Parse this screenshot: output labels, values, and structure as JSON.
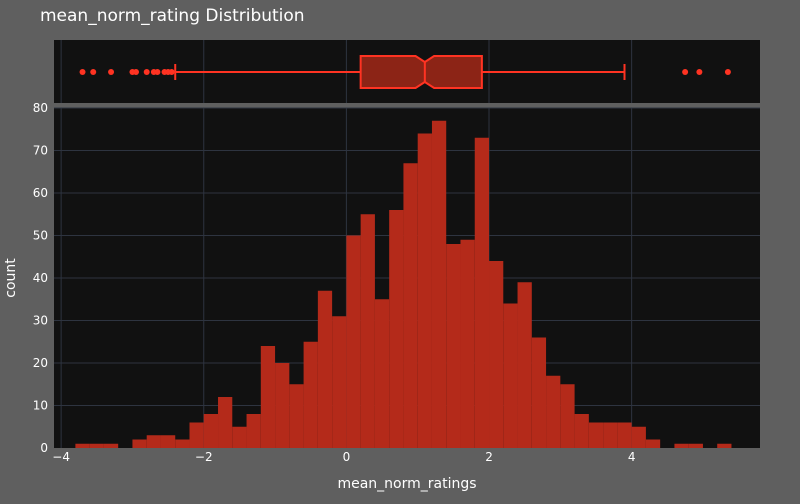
{
  "chart_data": {
    "type": "histogram",
    "title": "mean_norm_rating Distribution",
    "xlabel": "mean_norm_ratings",
    "ylabel": "count",
    "xlim": [
      -4.1,
      5.8
    ],
    "ylim": [
      0,
      80
    ],
    "x_ticks": [
      -4,
      -2,
      0,
      2,
      4
    ],
    "x_tick_labels": [
      "−4",
      "−2",
      "0",
      "2",
      "4"
    ],
    "y_ticks": [
      0,
      10,
      20,
      30,
      40,
      50,
      60,
      70,
      80
    ],
    "grid": true,
    "colors": {
      "bar_fill": "#b42a1a",
      "box_fill": "#8c2416",
      "box_stroke": "#ff3322",
      "plot_bg": "#111111",
      "paper_bg": "#5f5f5f",
      "grid": "#2e3440"
    },
    "bin_width": 0.2,
    "bins": [
      {
        "x0": -3.8,
        "count": 1
      },
      {
        "x0": -3.6,
        "count": 1
      },
      {
        "x0": -3.4,
        "count": 1
      },
      {
        "x0": -3.2,
        "count": 0
      },
      {
        "x0": -3.0,
        "count": 2
      },
      {
        "x0": -2.8,
        "count": 3
      },
      {
        "x0": -2.6,
        "count": 3
      },
      {
        "x0": -2.4,
        "count": 2
      },
      {
        "x0": -2.2,
        "count": 6
      },
      {
        "x0": -2.0,
        "count": 8
      },
      {
        "x0": -1.8,
        "count": 12
      },
      {
        "x0": -1.6,
        "count": 5
      },
      {
        "x0": -1.4,
        "count": 8
      },
      {
        "x0": -1.2,
        "count": 24
      },
      {
        "x0": -1.0,
        "count": 20
      },
      {
        "x0": -0.8,
        "count": 15
      },
      {
        "x0": -0.6,
        "count": 25
      },
      {
        "x0": -0.4,
        "count": 37
      },
      {
        "x0": -0.2,
        "count": 31
      },
      {
        "x0": 0.0,
        "count": 50
      },
      {
        "x0": 0.2,
        "count": 55
      },
      {
        "x0": 0.4,
        "count": 35
      },
      {
        "x0": 0.6,
        "count": 56
      },
      {
        "x0": 0.8,
        "count": 67
      },
      {
        "x0": 1.0,
        "count": 74
      },
      {
        "x0": 1.2,
        "count": 77
      },
      {
        "x0": 1.4,
        "count": 48
      },
      {
        "x0": 1.6,
        "count": 49
      },
      {
        "x0": 1.8,
        "count": 73
      },
      {
        "x0": 2.0,
        "count": 44
      },
      {
        "x0": 2.2,
        "count": 34
      },
      {
        "x0": 2.4,
        "count": 39
      },
      {
        "x0": 2.6,
        "count": 26
      },
      {
        "x0": 2.8,
        "count": 17
      },
      {
        "x0": 3.0,
        "count": 15
      },
      {
        "x0": 3.2,
        "count": 8
      },
      {
        "x0": 3.4,
        "count": 6
      },
      {
        "x0": 3.6,
        "count": 6
      },
      {
        "x0": 3.8,
        "count": 6
      },
      {
        "x0": 4.0,
        "count": 5
      },
      {
        "x0": 4.2,
        "count": 2
      },
      {
        "x0": 4.4,
        "count": 0
      },
      {
        "x0": 4.6,
        "count": 1
      },
      {
        "x0": 4.8,
        "count": 1
      },
      {
        "x0": 5.0,
        "count": 0
      },
      {
        "x0": 5.2,
        "count": 1
      }
    ],
    "box": {
      "lower_fence": -2.4,
      "q1": 0.2,
      "median": 1.1,
      "q3": 1.9,
      "upper_fence": 3.9,
      "notch_low": 0.97,
      "notch_high": 1.23,
      "outliers": [
        -3.7,
        -3.55,
        -3.3,
        -3.0,
        -2.95,
        -2.8,
        -2.7,
        -2.65,
        -2.55,
        -2.5,
        -2.45,
        4.75,
        4.95,
        5.35
      ]
    }
  }
}
